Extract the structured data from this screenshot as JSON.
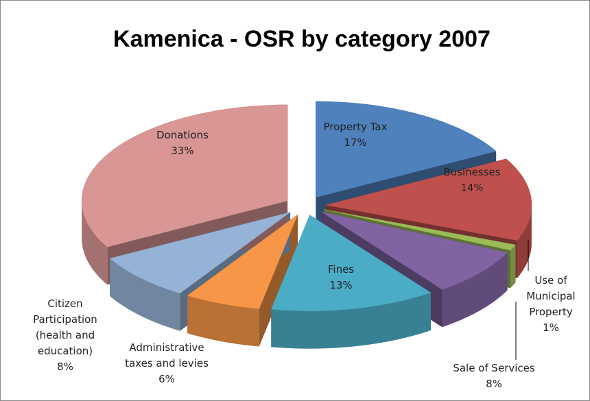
{
  "chart_data": {
    "type": "pie3d",
    "title": "Kamenica - OSR by category 2007",
    "categories": [
      "Property Tax",
      "Businesses",
      "Use of Municipal Property",
      "Sale of Services",
      "Fines",
      "Administrative taxes and levies",
      "Citizen Participation (health and education)",
      "Donations"
    ],
    "values": [
      17,
      14,
      1,
      8,
      13,
      6,
      8,
      33
    ],
    "value_labels": [
      "17%",
      "14%",
      "1%",
      "8%",
      "13%",
      "6%",
      "8%",
      "33%"
    ],
    "colors": [
      "#4f81bd",
      "#c0504d",
      "#9bbb59",
      "#8064a2",
      "#4bacc6",
      "#f79646",
      "#95b3d7",
      "#d99694"
    ]
  }
}
